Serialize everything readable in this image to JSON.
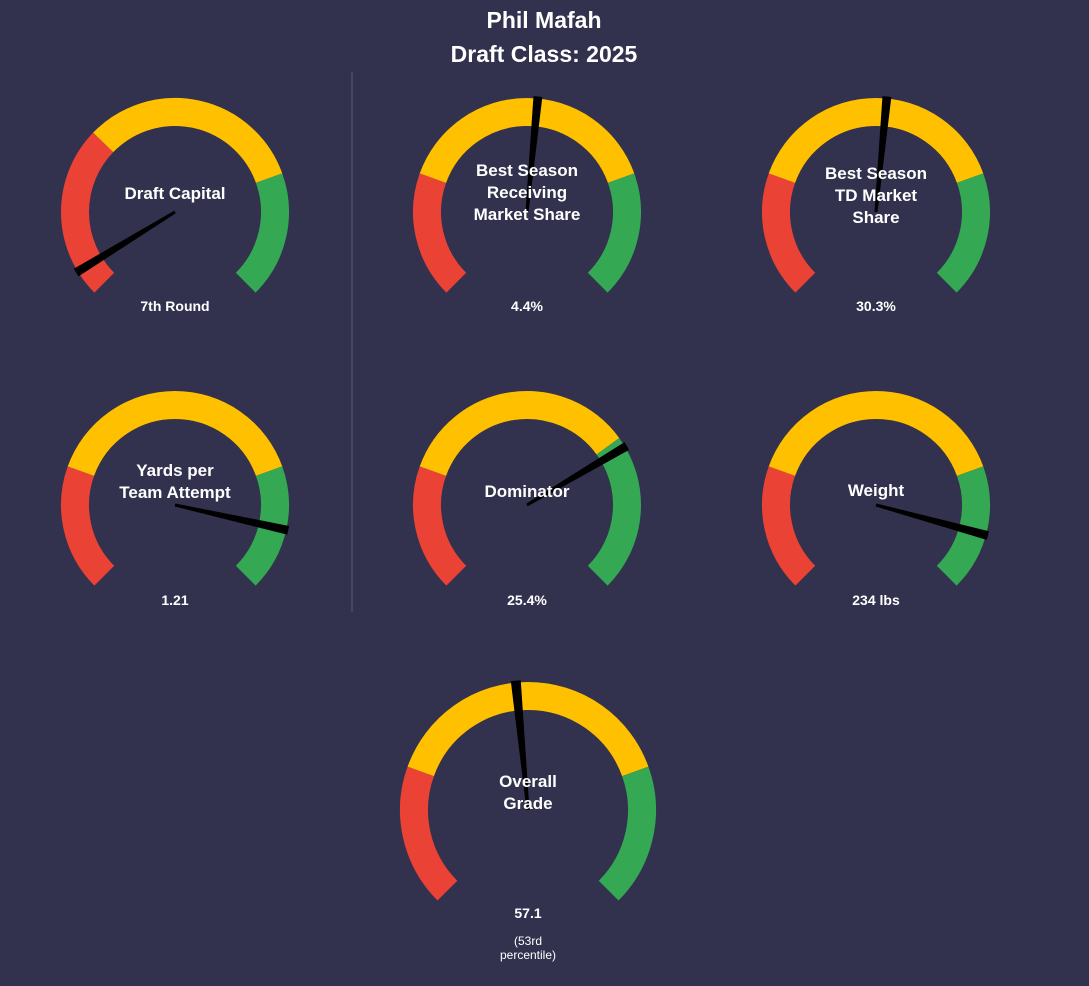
{
  "header": {
    "player_name": "Phil Mafah",
    "draft_class": "Draft Class: 2025"
  },
  "colors": {
    "background": "#32314E",
    "red": "#EA4335",
    "yellow": "#FFC000",
    "green": "#34A853",
    "needle": "#000000",
    "text": "#FFFFFF",
    "divider": "#5A5A78"
  },
  "chart_data": [
    {
      "type": "gauge",
      "title": "Draft Capital",
      "title_lines": [
        "Draft Capital"
      ],
      "value_label": "7th Round",
      "needle_fraction": 0.05,
      "bands": [
        {
          "color": "red",
          "from": 0,
          "to": 0.33
        },
        {
          "color": "yellow",
          "from": 0.33,
          "to": 0.76
        },
        {
          "color": "green",
          "from": 0.76,
          "to": 1
        }
      ]
    },
    {
      "type": "gauge",
      "title": "Best Season Receiving Market Share",
      "title_lines": [
        "Best Season",
        "Receiving",
        "Market Share"
      ],
      "value_label": "4.4%",
      "needle_fraction": 0.52,
      "bands": [
        {
          "color": "red",
          "from": 0,
          "to": 0.24
        },
        {
          "color": "yellow",
          "from": 0.24,
          "to": 0.76
        },
        {
          "color": "green",
          "from": 0.76,
          "to": 1
        }
      ]
    },
    {
      "type": "gauge",
      "title": "Best Season TD Market Share",
      "title_lines": [
        "Best Season",
        "TD Market",
        "Share"
      ],
      "value_label": "30.3%",
      "needle_fraction": 0.52,
      "bands": [
        {
          "color": "red",
          "from": 0,
          "to": 0.24
        },
        {
          "color": "yellow",
          "from": 0.24,
          "to": 0.76
        },
        {
          "color": "green",
          "from": 0.76,
          "to": 1
        }
      ]
    },
    {
      "type": "gauge",
      "title": "Yards per Team Attempt",
      "title_lines": [
        "Yards per",
        "Team Attempt"
      ],
      "value_label": "1.21",
      "needle_fraction": 0.88,
      "bands": [
        {
          "color": "red",
          "from": 0,
          "to": 0.24
        },
        {
          "color": "yellow",
          "from": 0.24,
          "to": 0.76
        },
        {
          "color": "green",
          "from": 0.76,
          "to": 1
        }
      ]
    },
    {
      "type": "gauge",
      "title": "Dominator",
      "title_lines": [
        "Dominator"
      ],
      "value_label": "25.4%",
      "needle_fraction": 0.72,
      "bands": [
        {
          "color": "red",
          "from": 0,
          "to": 0.24
        },
        {
          "color": "yellow",
          "from": 0.24,
          "to": 0.7
        },
        {
          "color": "green",
          "from": 0.7,
          "to": 1
        }
      ]
    },
    {
      "type": "gauge",
      "title": "Weight",
      "title_lines": [
        "Weight"
      ],
      "value_label": "234 lbs",
      "needle_fraction": 0.89,
      "bands": [
        {
          "color": "red",
          "from": 0,
          "to": 0.24
        },
        {
          "color": "yellow",
          "from": 0.24,
          "to": 0.76
        },
        {
          "color": "green",
          "from": 0.76,
          "to": 1
        }
      ]
    },
    {
      "type": "gauge",
      "title": "Overall Grade",
      "title_lines": [
        "Overall",
        "Grade"
      ],
      "value_label": "57.1",
      "sub_lines": [
        "(53rd",
        "percentile)"
      ],
      "needle_fraction": 0.48,
      "bands": [
        {
          "color": "red",
          "from": 0,
          "to": 0.24
        },
        {
          "color": "yellow",
          "from": 0.24,
          "to": 0.76
        },
        {
          "color": "green",
          "from": 0.76,
          "to": 1
        }
      ]
    }
  ]
}
